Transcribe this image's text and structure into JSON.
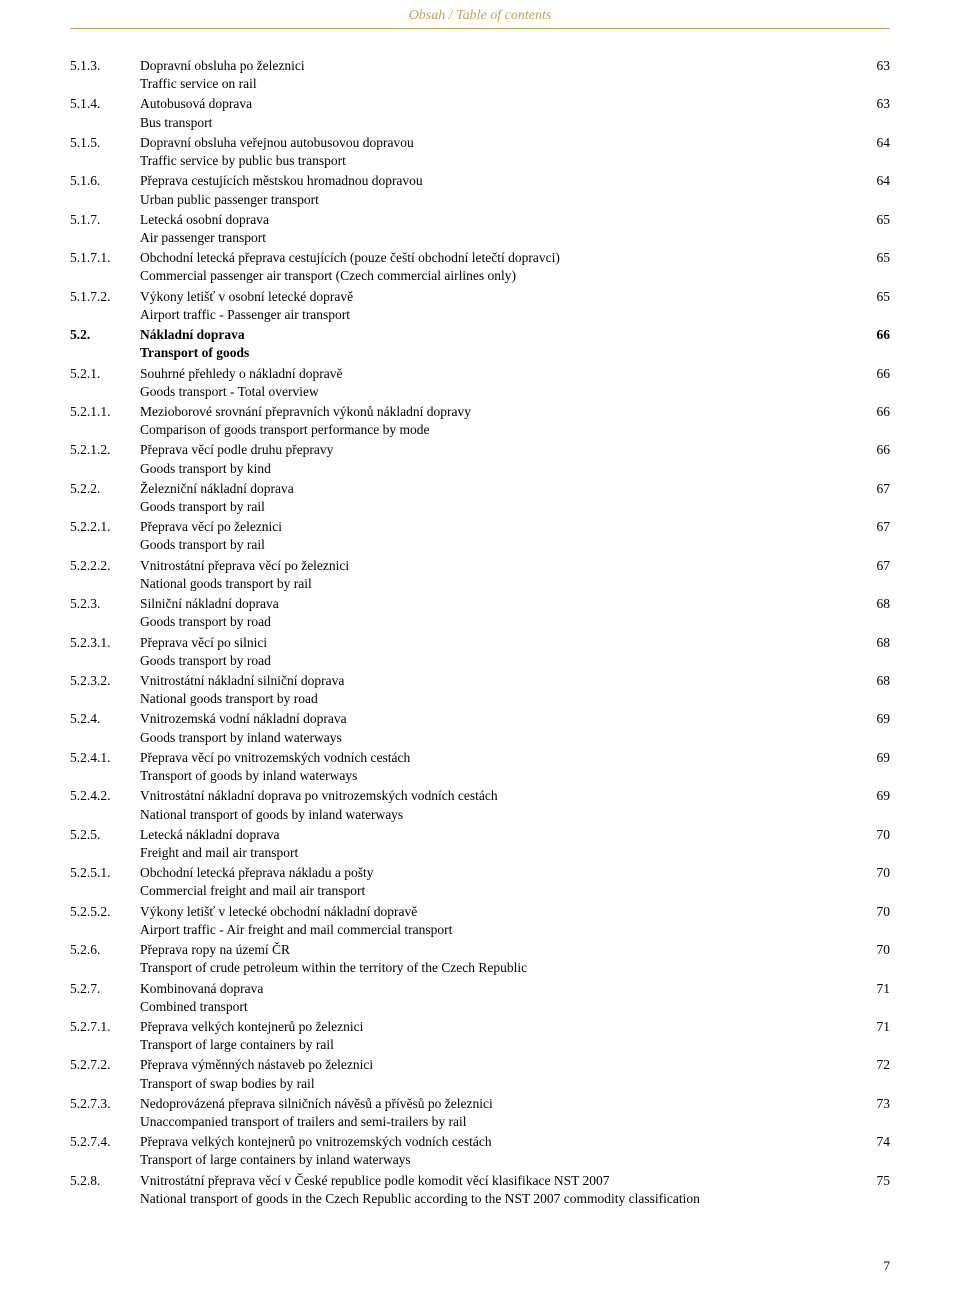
{
  "header": "Obsah / Table of contents",
  "pageNumber": "7",
  "colors": {
    "accent": "#c9a050",
    "text": "#000000",
    "background": "#ffffff"
  },
  "entries": [
    {
      "num": "5.1.3.",
      "cz": "Dopravní obsluha po železnici",
      "en": "Traffic service on rail",
      "page": "63",
      "bold": false
    },
    {
      "num": "5.1.4.",
      "cz": "Autobusová doprava",
      "en": "Bus transport",
      "page": "63",
      "bold": false
    },
    {
      "num": "5.1.5.",
      "cz": "Dopravní obsluha veřejnou autobusovou dopravou",
      "en": "Traffic service by public bus transport",
      "page": "64",
      "bold": false
    },
    {
      "num": "5.1.6.",
      "cz": "Přeprava cestujících městskou hromadnou dopravou",
      "en": "Urban public passenger transport",
      "page": "64",
      "bold": false
    },
    {
      "num": "5.1.7.",
      "cz": "Letecká osobní doprava",
      "en": "Air passenger transport",
      "page": "65",
      "bold": false
    },
    {
      "num": "5.1.7.1.",
      "cz": "Obchodní letecká přeprava cestujících (pouze čeští obchodní letečtí dopravci)",
      "en": "Commercial passenger air transport (Czech commercial airlines only)",
      "page": "65",
      "bold": false
    },
    {
      "num": "5.1.7.2.",
      "cz": "Výkony letišť v osobní letecké dopravě",
      "en": "Airport traffic - Passenger air transport",
      "page": "65",
      "bold": false
    },
    {
      "num": "5.2.",
      "cz": "Nákladní doprava",
      "en": "Transport of goods",
      "page": "66",
      "bold": true
    },
    {
      "num": "5.2.1.",
      "cz": "Souhrné přehledy o nákladní dopravě",
      "en": "Goods transport - Total overview",
      "page": "66",
      "bold": false
    },
    {
      "num": "5.2.1.1.",
      "cz": "Mezioborové srovnání přepravních výkonů nákladní dopravy",
      "en": "Comparison of goods transport performance by mode",
      "page": "66",
      "bold": false
    },
    {
      "num": "5.2.1.2.",
      "cz": "Přeprava věcí podle druhu přepravy",
      "en": "Goods transport by kind",
      "page": "66",
      "bold": false
    },
    {
      "num": "5.2.2.",
      "cz": "Železniční nákladní doprava",
      "en": "Goods transport by rail",
      "page": "67",
      "bold": false
    },
    {
      "num": "5.2.2.1.",
      "cz": "Přeprava věcí po železnici",
      "en": "Goods transport by rail",
      "page": "67",
      "bold": false
    },
    {
      "num": "5.2.2.2.",
      "cz": "Vnitrostátní přeprava věcí po železnici",
      "en": "National goods transport by rail",
      "page": "67",
      "bold": false
    },
    {
      "num": "5.2.3.",
      "cz": "Silniční nákladní doprava",
      "en": "Goods transport by road",
      "page": "68",
      "bold": false
    },
    {
      "num": "5.2.3.1.",
      "cz": "Přeprava věcí po silnici",
      "en": "Goods transport by road",
      "page": "68",
      "bold": false
    },
    {
      "num": "5.2.3.2.",
      "cz": "Vnitrostátní nákladní silniční doprava",
      "en": "National goods transport by road",
      "page": "68",
      "bold": false
    },
    {
      "num": "5.2.4.",
      "cz": "Vnitrozemská vodní nákladní doprava",
      "en": "Goods transport by inland waterways",
      "page": "69",
      "bold": false
    },
    {
      "num": "5.2.4.1.",
      "cz": "Přeprava věcí po vnitrozemských vodních cestách",
      "en": "Transport of goods by inland waterways",
      "page": "69",
      "bold": false
    },
    {
      "num": "5.2.4.2.",
      "cz": "Vnitrostátní nákladní doprava po vnitrozemských vodních cestách",
      "en": "National transport of goods by inland waterways",
      "page": "69",
      "bold": false
    },
    {
      "num": "5.2.5.",
      "cz": "Letecká nákladní doprava",
      "en": "Freight and mail air transport",
      "page": "70",
      "bold": false
    },
    {
      "num": "5.2.5.1.",
      "cz": "Obchodní letecká přeprava nákladu a pošty",
      "en": "Commercial freight and mail air transport",
      "page": "70",
      "bold": false
    },
    {
      "num": "5.2.5.2.",
      "cz": "Výkony letišť v letecké obchodní nákladní dopravě",
      "en": "Airport traffic - Air freight and mail commercial transport",
      "page": "70",
      "bold": false
    },
    {
      "num": "5.2.6.",
      "cz": "Přeprava ropy na území ČR",
      "en": "Transport of crude petroleum within the territory of the Czech Republic",
      "page": "70",
      "bold": false
    },
    {
      "num": "5.2.7.",
      "cz": "Kombinovaná doprava",
      "en": "Combined transport",
      "page": "71",
      "bold": false
    },
    {
      "num": "5.2.7.1.",
      "cz": "Přeprava velkých kontejnerů po železnici",
      "en": "Transport of large containers by rail",
      "page": "71",
      "bold": false
    },
    {
      "num": "5.2.7.2.",
      "cz": "Přeprava výměnných nástaveb po železnici",
      "en": "Transport of swap bodies by rail",
      "page": "72",
      "bold": false
    },
    {
      "num": "5.2.7.3.",
      "cz": "Nedoprovázená přeprava silničních návěsů a přívěsů po železnici",
      "en": "Unaccompanied transport of  trailers and semi-trailers by rail",
      "page": "73",
      "bold": false
    },
    {
      "num": "5.2.7.4.",
      "cz": "Přeprava velkých kontejnerů po vnitrozemských vodních cestách",
      "en": "Transport of large containers by inland waterways",
      "page": "74",
      "bold": false
    },
    {
      "num": "5.2.8.",
      "cz": "Vnitrostátní přeprava věcí v České republice podle komodit věcí klasifikace NST 2007",
      "en": "National transport of goods in the Czech Republic according to the NST 2007 commodity classification",
      "page": "75",
      "bold": false
    }
  ]
}
